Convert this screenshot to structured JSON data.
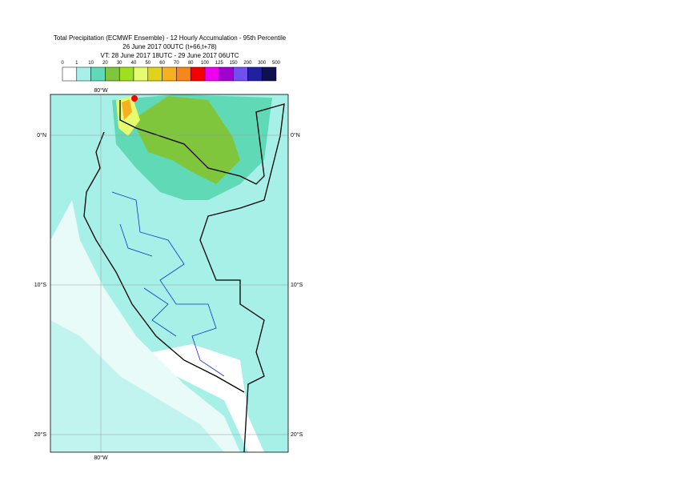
{
  "header": {
    "lines": [
      "Total Precipitation (ECMWF Ensemble) - 12 Hourly Accumulation - 95th Percentile",
      "26 June 2017 00UTC (t+66,t+78)",
      "VT: 28 June 2017 18UTC - 29 June 2017 06UTC"
    ]
  },
  "colorbar": {
    "levels": [
      0,
      1,
      10,
      20,
      30,
      40,
      50,
      60,
      70,
      80,
      100,
      125,
      150,
      200,
      300,
      500
    ],
    "colors": [
      "#ffffff",
      "#a6f0e8",
      "#5fd9b6",
      "#7fc63c",
      "#9fe01e",
      "#e7fb6f",
      "#e1d21a",
      "#f7b020",
      "#f7861c",
      "#f40000",
      "#f000f0",
      "#a000d0",
      "#7050f0",
      "#2020a0",
      "#101050"
    ]
  },
  "map": {
    "lon_labels": [
      "80°W"
    ],
    "lat_labels": [
      "0°N",
      "10°S",
      "20°S"
    ]
  }
}
